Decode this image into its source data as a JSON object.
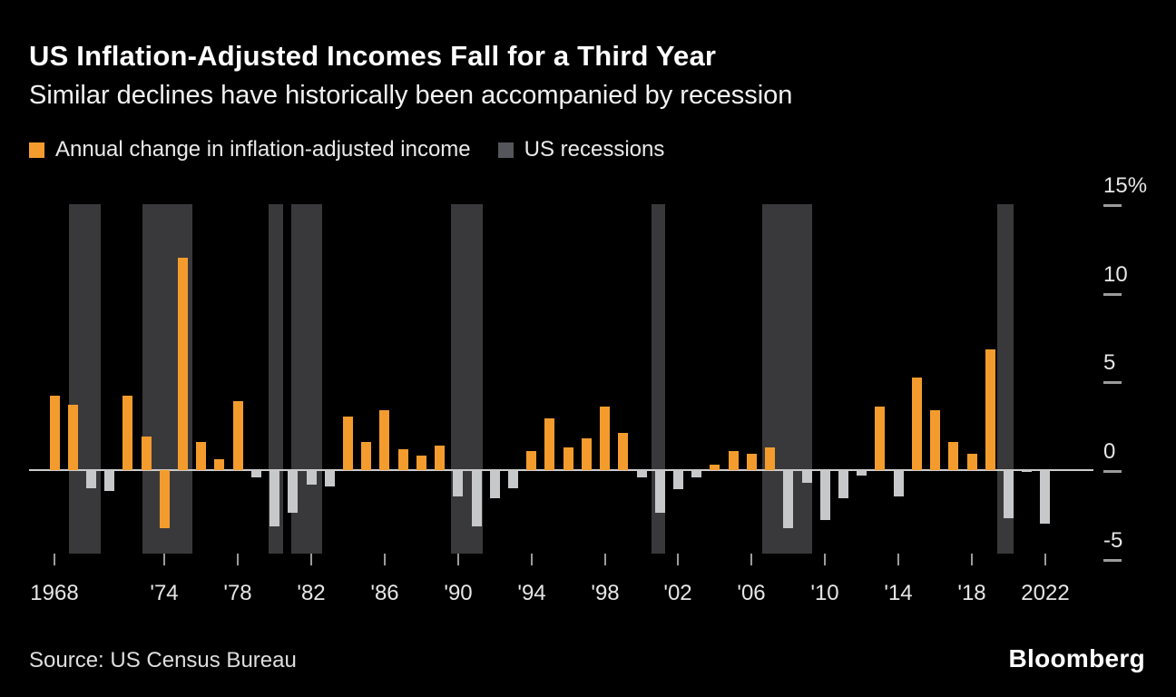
{
  "header": {
    "title": "US Inflation-Adjusted Incomes Fall for a Third Year",
    "subtitle": "Similar declines have historically been accompanied by recession"
  },
  "legend": {
    "income": {
      "label": "Annual change in inflation-adjusted income",
      "color": "#f39c2d"
    },
    "recessions": {
      "label": "US recessions",
      "color": "#55565b"
    }
  },
  "footer": {
    "source": "Source: US Census Bureau",
    "brand": "Bloomberg"
  },
  "chart_data": {
    "type": "bar",
    "title": "US Inflation-Adjusted Incomes Fall for a Third Year",
    "xlabel": "",
    "ylabel": "Annual change in inflation-adjusted income (%)",
    "x_range": [
      1967,
      2023
    ],
    "ylim": [
      -4.7,
      15
    ],
    "grid": false,
    "legend_position": "top-left",
    "colors": {
      "orange": "#f39c2d",
      "gray": "#c7c8ca",
      "recession": "#39393c",
      "baseline": "#cccccc"
    },
    "y_ticks": [
      {
        "value": 15,
        "label": "15%"
      },
      {
        "value": 10,
        "label": "10"
      },
      {
        "value": 5,
        "label": "5"
      },
      {
        "value": 0,
        "label": "0"
      },
      {
        "value": -5,
        "label": "-5"
      }
    ],
    "x_ticks": [
      {
        "year": 1968,
        "label": "1968"
      },
      {
        "year": 1974,
        "label": "'74"
      },
      {
        "year": 1978,
        "label": "'78"
      },
      {
        "year": 1982,
        "label": "'82"
      },
      {
        "year": 1986,
        "label": "'86"
      },
      {
        "year": 1990,
        "label": "'90"
      },
      {
        "year": 1994,
        "label": "'94"
      },
      {
        "year": 1998,
        "label": "'98"
      },
      {
        "year": 2002,
        "label": "'02"
      },
      {
        "year": 2006,
        "label": "'06"
      },
      {
        "year": 2010,
        "label": "'10"
      },
      {
        "year": 2014,
        "label": "'14"
      },
      {
        "year": 2018,
        "label": "'18"
      },
      {
        "year": 2022,
        "label": "2022"
      }
    ],
    "points": [
      {
        "year": 1968,
        "value": 4.2,
        "color": "orange"
      },
      {
        "year": 1969,
        "value": 3.7,
        "color": "orange"
      },
      {
        "year": 1970,
        "value": -1.0,
        "color": "gray"
      },
      {
        "year": 1971,
        "value": -1.2,
        "color": "gray"
      },
      {
        "year": 1972,
        "value": 4.2,
        "color": "orange"
      },
      {
        "year": 1973,
        "value": 1.9,
        "color": "orange"
      },
      {
        "year": 1974,
        "value": -3.3,
        "color": "orange"
      },
      {
        "year": 1975,
        "value": 12.0,
        "color": "orange"
      },
      {
        "year": 1976,
        "value": 1.6,
        "color": "orange"
      },
      {
        "year": 1977,
        "value": 0.6,
        "color": "orange"
      },
      {
        "year": 1978,
        "value": 3.9,
        "color": "orange"
      },
      {
        "year": 1979,
        "value": -0.4,
        "color": "gray"
      },
      {
        "year": 1980,
        "value": -3.2,
        "color": "gray"
      },
      {
        "year": 1981,
        "value": -2.4,
        "color": "gray"
      },
      {
        "year": 1982,
        "value": -0.8,
        "color": "gray"
      },
      {
        "year": 1983,
        "value": -0.9,
        "color": "gray"
      },
      {
        "year": 1984,
        "value": 3.0,
        "color": "orange"
      },
      {
        "year": 1985,
        "value": 1.6,
        "color": "orange"
      },
      {
        "year": 1986,
        "value": 3.4,
        "color": "orange"
      },
      {
        "year": 1987,
        "value": 1.2,
        "color": "orange"
      },
      {
        "year": 1988,
        "value": 0.8,
        "color": "orange"
      },
      {
        "year": 1989,
        "value": 1.4,
        "color": "orange"
      },
      {
        "year": 1990,
        "value": -1.5,
        "color": "gray"
      },
      {
        "year": 1991,
        "value": -3.2,
        "color": "gray"
      },
      {
        "year": 1992,
        "value": -1.6,
        "color": "gray"
      },
      {
        "year": 1993,
        "value": -1.0,
        "color": "gray"
      },
      {
        "year": 1994,
        "value": 1.1,
        "color": "orange"
      },
      {
        "year": 1995,
        "value": 2.9,
        "color": "orange"
      },
      {
        "year": 1996,
        "value": 1.3,
        "color": "orange"
      },
      {
        "year": 1997,
        "value": 1.8,
        "color": "orange"
      },
      {
        "year": 1998,
        "value": 3.6,
        "color": "orange"
      },
      {
        "year": 1999,
        "value": 2.1,
        "color": "orange"
      },
      {
        "year": 2000,
        "value": -0.4,
        "color": "gray"
      },
      {
        "year": 2001,
        "value": -2.4,
        "color": "gray"
      },
      {
        "year": 2002,
        "value": -1.1,
        "color": "gray"
      },
      {
        "year": 2003,
        "value": -0.4,
        "color": "gray"
      },
      {
        "year": 2004,
        "value": 0.3,
        "color": "orange"
      },
      {
        "year": 2005,
        "value": 1.1,
        "color": "orange"
      },
      {
        "year": 2006,
        "value": 0.9,
        "color": "orange"
      },
      {
        "year": 2007,
        "value": 1.3,
        "color": "orange"
      },
      {
        "year": 2008,
        "value": -3.3,
        "color": "gray"
      },
      {
        "year": 2009,
        "value": -0.7,
        "color": "gray"
      },
      {
        "year": 2010,
        "value": -2.8,
        "color": "gray"
      },
      {
        "year": 2011,
        "value": -1.6,
        "color": "gray"
      },
      {
        "year": 2012,
        "value": -0.3,
        "color": "gray"
      },
      {
        "year": 2013,
        "value": 3.6,
        "color": "orange"
      },
      {
        "year": 2014,
        "value": -1.5,
        "color": "gray"
      },
      {
        "year": 2015,
        "value": 5.2,
        "color": "orange"
      },
      {
        "year": 2016,
        "value": 3.4,
        "color": "orange"
      },
      {
        "year": 2017,
        "value": 1.6,
        "color": "orange"
      },
      {
        "year": 2018,
        "value": 0.9,
        "color": "orange"
      },
      {
        "year": 2019,
        "value": 6.8,
        "color": "orange"
      },
      {
        "year": 2020,
        "value": -2.7,
        "color": "gray"
      },
      {
        "year": 2021,
        "value": -0.1,
        "color": "gray"
      },
      {
        "year": 2022,
        "value": -3.0,
        "color": "gray"
      }
    ],
    "recessions": [
      {
        "start": 1968.8,
        "end": 1970.55
      },
      {
        "start": 1972.8,
        "end": 1975.5
      },
      {
        "start": 1979.65,
        "end": 1980.45
      },
      {
        "start": 1980.9,
        "end": 1982.6
      },
      {
        "start": 1989.6,
        "end": 1991.35
      },
      {
        "start": 2000.55,
        "end": 2001.3
      },
      {
        "start": 2006.6,
        "end": 2009.3
      },
      {
        "start": 2019.4,
        "end": 2020.3
      }
    ]
  }
}
